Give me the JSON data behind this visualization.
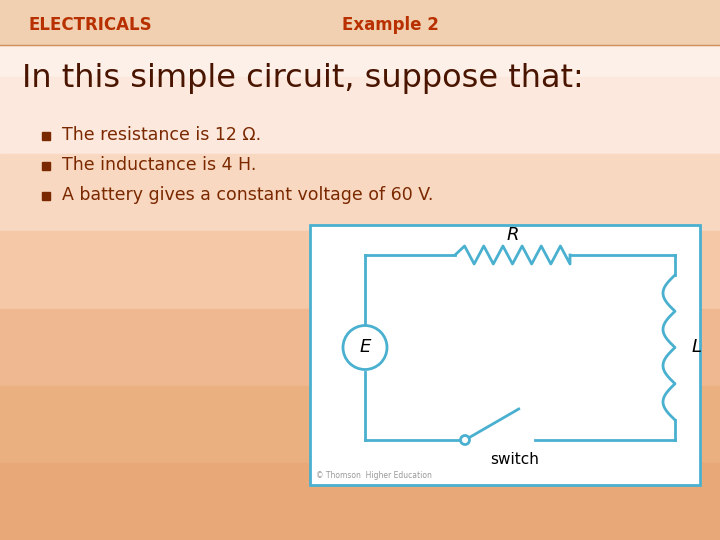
{
  "title_left": "ELECTRICALS",
  "title_right": "Example 2",
  "title_color": "#b83000",
  "heading": "In this simple circuit, suppose that:",
  "heading_color": "#4a1500",
  "bullet_color": "#7a2800",
  "bullets": [
    "The resistance is 12 Ω.",
    "The inductance is 4 H.",
    "A battery gives a constant voltage of 60 V."
  ],
  "circuit_color": "#4ab0d0",
  "circuit_text_color": "#000000",
  "bg_top": "#fdf0e8",
  "bg_mid": "#f5c8a8",
  "bg_bot": "#e8a878",
  "header_band_color": "#f0c8a8",
  "figsize": [
    7.2,
    5.4
  ],
  "dpi": 100
}
